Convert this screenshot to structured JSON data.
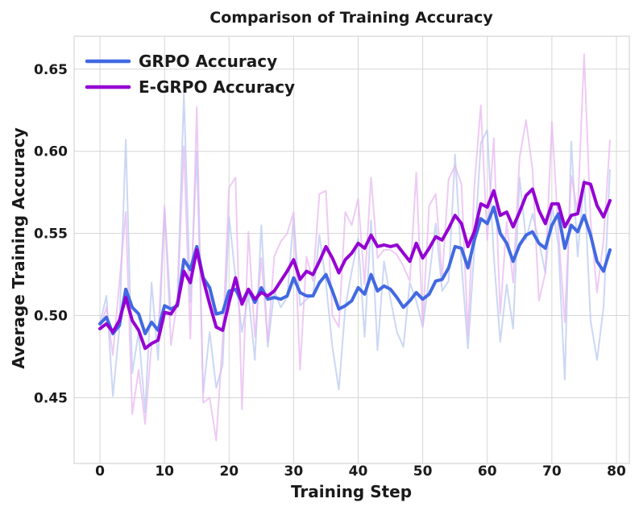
{
  "chart_data": {
    "type": "line",
    "title": "Comparison of Training Accuracy",
    "xlabel": "Training Step",
    "ylabel": "Average Training Accuracy",
    "xlim": [
      -4,
      82
    ],
    "ylim": [
      0.41,
      0.67
    ],
    "xticks": [
      0,
      10,
      20,
      30,
      40,
      50,
      60,
      70,
      80
    ],
    "yticks": [
      0.45,
      0.5,
      0.55,
      0.6,
      0.65
    ],
    "ytick_labels": [
      "0.45",
      "0.50",
      "0.55",
      "0.60",
      "0.65"
    ],
    "grid": true,
    "legend_position": "top-left",
    "series": [
      {
        "name": "GRPO Accuracy",
        "color": "#4169e1",
        "raw_color": "#b9c9f0",
        "raw": [
          0.495,
          0.512,
          0.451,
          0.492,
          0.607,
          0.465,
          0.49,
          0.441,
          0.52,
          0.473,
          0.565,
          0.5,
          0.51,
          0.635,
          0.508,
          0.6,
          0.453,
          0.49,
          0.456,
          0.47,
          0.56,
          0.523,
          0.49,
          0.513,
          0.473,
          0.555,
          0.481,
          0.515,
          0.505,
          0.511,
          0.56,
          0.506,
          0.51,
          0.512,
          0.549,
          0.52,
          0.481,
          0.455,
          0.505,
          0.527,
          0.547,
          0.487,
          0.558,
          0.479,
          0.533,
          0.51,
          0.49,
          0.481,
          0.52,
          0.509,
          0.493,
          0.523,
          0.556,
          0.515,
          0.521,
          0.598,
          0.532,
          0.48,
          0.54,
          0.605,
          0.613,
          0.536,
          0.484,
          0.519,
          0.492,
          0.584,
          0.546,
          0.562,
          0.545,
          0.526,
          0.568,
          0.543,
          0.461,
          0.606,
          0.536,
          0.583,
          0.497,
          0.473,
          0.505,
          0.589
        ],
        "smoothed": [
          0.495,
          0.499,
          0.489,
          0.494,
          0.516,
          0.505,
          0.501,
          0.489,
          0.496,
          0.491,
          0.506,
          0.504,
          0.506,
          0.534,
          0.528,
          0.542,
          0.523,
          0.517,
          0.501,
          0.502,
          0.515,
          0.516,
          0.508,
          0.516,
          0.508,
          0.517,
          0.51,
          0.511,
          0.51,
          0.512,
          0.523,
          0.514,
          0.512,
          0.512,
          0.52,
          0.525,
          0.515,
          0.504,
          0.506,
          0.509,
          0.517,
          0.513,
          0.525,
          0.515,
          0.518,
          0.516,
          0.511,
          0.505,
          0.509,
          0.514,
          0.51,
          0.513,
          0.521,
          0.522,
          0.529,
          0.542,
          0.541,
          0.529,
          0.546,
          0.559,
          0.556,
          0.566,
          0.55,
          0.544,
          0.533,
          0.543,
          0.549,
          0.551,
          0.544,
          0.541,
          0.555,
          0.562,
          0.541,
          0.555,
          0.551,
          0.561,
          0.549,
          0.533,
          0.527,
          0.54
        ]
      },
      {
        "name": "E-GRPO Accuracy",
        "color": "#9400d3",
        "raw_color": "#e8b8f0",
        "raw": [
          0.492,
          0.505,
          0.476,
          0.52,
          0.563,
          0.44,
          0.467,
          0.434,
          0.483,
          0.486,
          0.567,
          0.482,
          0.51,
          0.603,
          0.486,
          0.627,
          0.447,
          0.45,
          0.424,
          0.485,
          0.578,
          0.584,
          0.443,
          0.551,
          0.487,
          0.535,
          0.484,
          0.536,
          0.545,
          0.55,
          0.563,
          0.467,
          0.536,
          0.521,
          0.574,
          0.576,
          0.5,
          0.493,
          0.563,
          0.555,
          0.571,
          0.519,
          0.584,
          0.535,
          0.54,
          0.54,
          0.537,
          0.53,
          0.521,
          0.587,
          0.494,
          0.567,
          0.574,
          0.523,
          0.583,
          0.591,
          0.58,
          0.488,
          0.579,
          0.628,
          0.546,
          0.608,
          0.501,
          0.557,
          0.52,
          0.596,
          0.619,
          0.589,
          0.509,
          0.526,
          0.618,
          0.552,
          0.496,
          0.585,
          0.563,
          0.659,
          0.558,
          0.514,
          0.546,
          0.607
        ],
        "smoothed": [
          0.492,
          0.495,
          0.49,
          0.497,
          0.511,
          0.497,
          0.491,
          0.48,
          0.483,
          0.485,
          0.502,
          0.501,
          0.507,
          0.527,
          0.52,
          0.54,
          0.522,
          0.507,
          0.493,
          0.491,
          0.508,
          0.523,
          0.507,
          0.516,
          0.51,
          0.514,
          0.512,
          0.515,
          0.521,
          0.527,
          0.534,
          0.522,
          0.527,
          0.525,
          0.533,
          0.542,
          0.535,
          0.526,
          0.534,
          0.538,
          0.544,
          0.541,
          0.549,
          0.542,
          0.543,
          0.542,
          0.543,
          0.538,
          0.533,
          0.544,
          0.535,
          0.541,
          0.548,
          0.546,
          0.553,
          0.561,
          0.556,
          0.542,
          0.551,
          0.568,
          0.566,
          0.576,
          0.561,
          0.563,
          0.554,
          0.563,
          0.573,
          0.577,
          0.564,
          0.556,
          0.568,
          0.568,
          0.554,
          0.561,
          0.562,
          0.581,
          0.58,
          0.567,
          0.56,
          0.57
        ]
      }
    ]
  }
}
